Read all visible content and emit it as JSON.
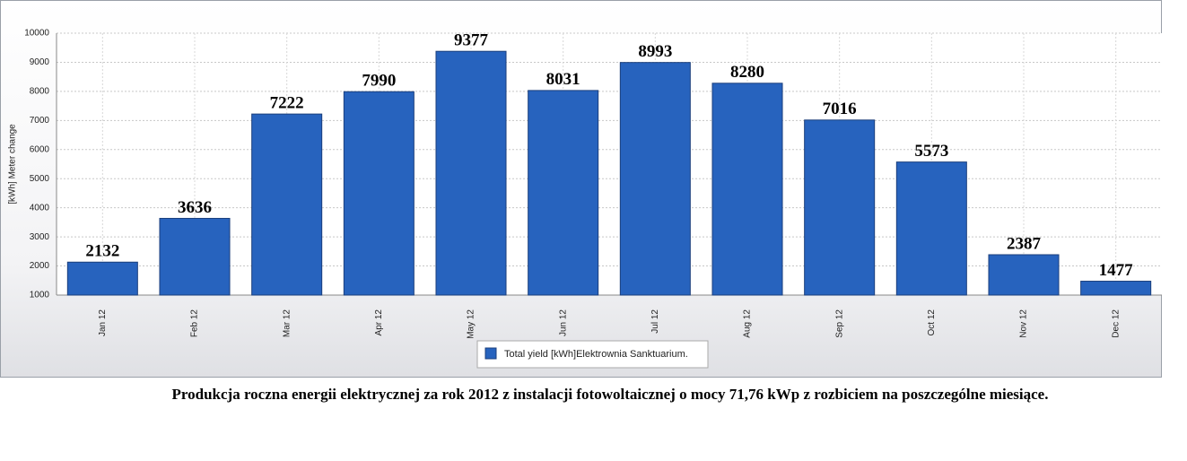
{
  "chart_data": {
    "type": "bar",
    "y_label": "[kWh] Meter change",
    "categories": [
      "Jan 12",
      "Feb 12",
      "Mar 12",
      "Apr 12",
      "May 12",
      "Jun 12",
      "Jul 12",
      "Aug 12",
      "Sep 12",
      "Oct 12",
      "Nov 12",
      "Dec 12"
    ],
    "series": [
      {
        "name": "Total yield [kWh]Elektrownia Sanktuarium.",
        "color": "#2763be",
        "values": [
          2132,
          3636,
          7222,
          7990,
          9377,
          8031,
          8993,
          8280,
          7016,
          5573,
          2387,
          1477
        ]
      }
    ],
    "ylim": [
      1000,
      10000
    ],
    "yticks": [
      1000,
      2000,
      3000,
      4000,
      5000,
      6000,
      7000,
      8000,
      9000,
      10000
    ],
    "grid": true,
    "legend": "bottom",
    "caption": "Produkcja roczna energii elektrycznej za rok 2012 z instalacji fotowoltaicznej o mocy 71,76 kWp z rozbiciem na poszczególne miesiące."
  }
}
